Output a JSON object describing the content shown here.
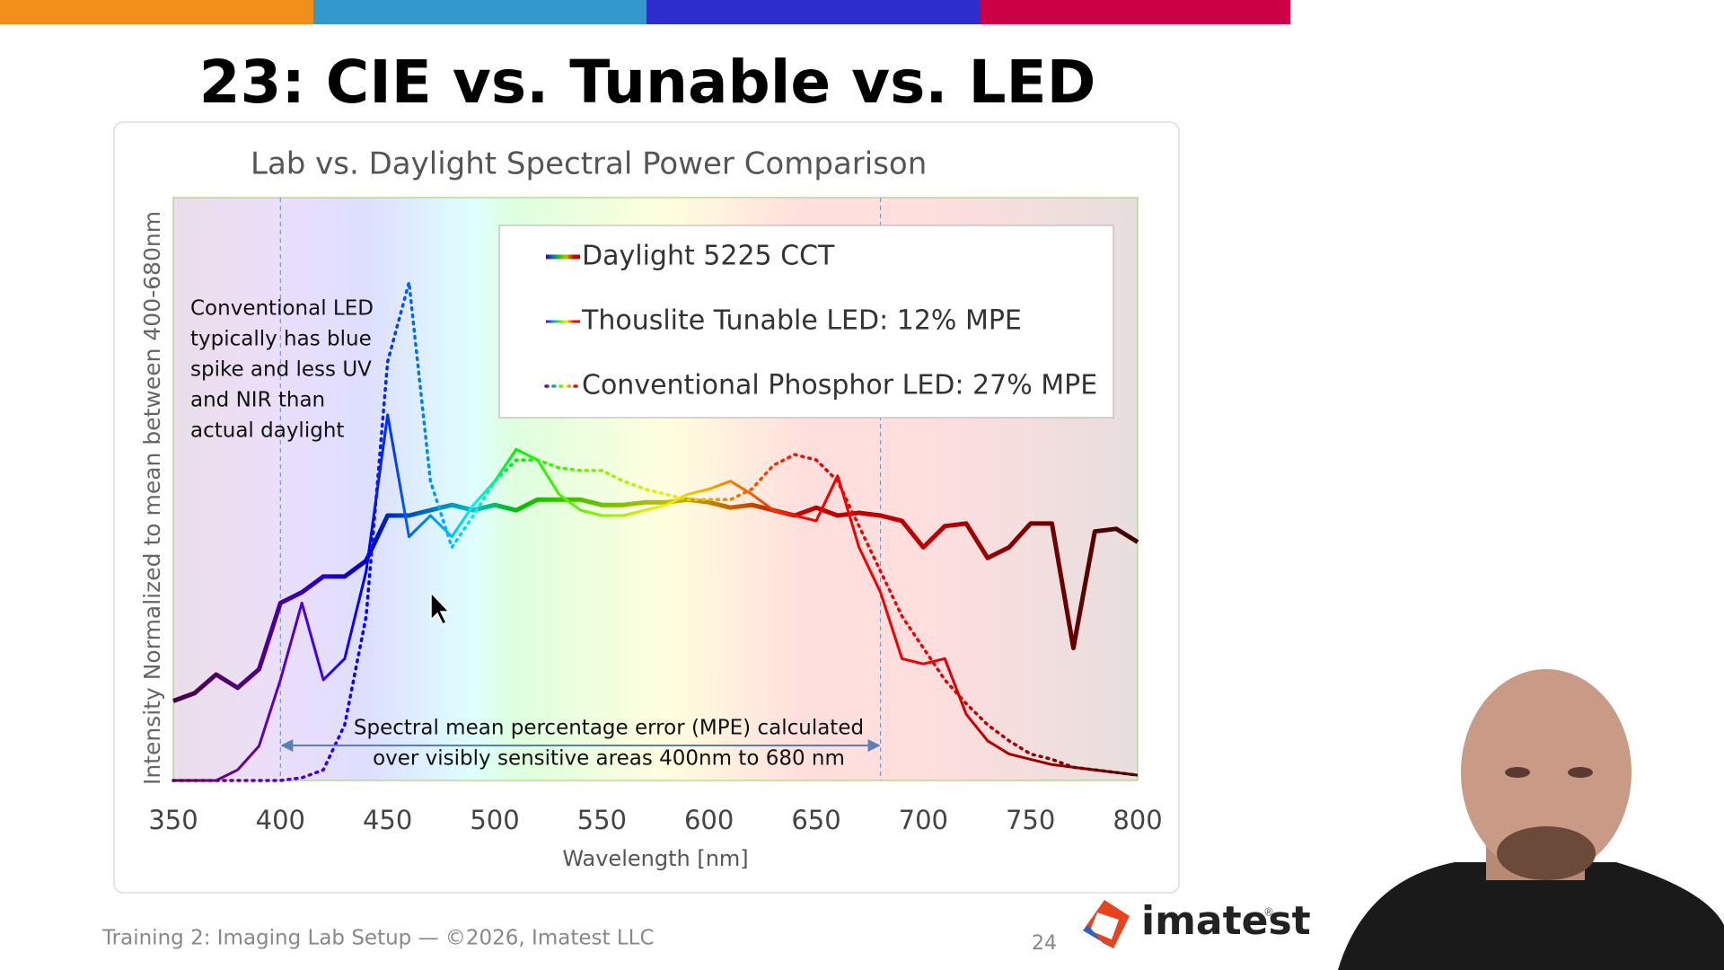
{
  "slide": {
    "title": "23: CIE vs. Tunable vs. LED",
    "footer": "Training 2: Imaging Lab Setup — ©2026, Imatest LLC",
    "page_number": "24",
    "logo": "imatest",
    "logo_mark": "®"
  },
  "chart_data": {
    "type": "line",
    "title": "Lab vs. Daylight Spectral Power Comparison",
    "x_label": "Wavelength [nm]",
    "y_label": "Intensity Normalized to mean between 400-680nm",
    "color_mode": "wavelength",
    "legend": "upper right",
    "x": [
      350,
      360,
      370,
      380,
      390,
      400,
      410,
      420,
      430,
      440,
      450,
      460,
      470,
      480,
      490,
      500,
      510,
      520,
      530,
      540,
      550,
      560,
      570,
      580,
      590,
      600,
      610,
      620,
      630,
      640,
      650,
      660,
      670,
      680,
      690,
      700,
      710,
      720,
      730,
      740,
      750,
      760,
      770,
      780,
      790,
      800
    ],
    "series": [
      {
        "name": "Daylight 5225 CCT",
        "line_style": "solid",
        "line_width": 5,
        "values": [
          0.3,
          0.33,
          0.4,
          0.35,
          0.42,
          0.67,
          0.71,
          0.77,
          0.77,
          0.83,
          1.0,
          1.0,
          1.02,
          1.04,
          1.02,
          1.04,
          1.02,
          1.06,
          1.06,
          1.06,
          1.04,
          1.04,
          1.05,
          1.05,
          1.06,
          1.05,
          1.03,
          1.04,
          1.02,
          1.0,
          1.03,
          1.0,
          1.01,
          1.0,
          0.98,
          0.88,
          0.96,
          0.97,
          0.84,
          0.88,
          0.97,
          0.97,
          0.5,
          0.94,
          0.95,
          0.9
        ]
      },
      {
        "name": "Thouslite Tunable LED: 12% MPE",
        "line_style": "solid",
        "line_width": 3,
        "values": [
          0,
          0,
          0,
          0.04,
          0.13,
          0.38,
          0.67,
          0.38,
          0.46,
          0.79,
          1.38,
          0.92,
          1.0,
          0.92,
          1.04,
          1.13,
          1.25,
          1.21,
          1.08,
          1.02,
          1.0,
          1.0,
          1.02,
          1.04,
          1.08,
          1.1,
          1.13,
          1.08,
          1.02,
          1.0,
          0.98,
          1.15,
          0.88,
          0.71,
          0.46,
          0.44,
          0.46,
          0.25,
          0.15,
          0.1,
          0.08,
          0.06,
          0.05,
          0.04,
          0.03,
          0.02
        ]
      },
      {
        "name": "Conventional Phosphor LED: 27% MPE",
        "line_style": "dotted",
        "line_width": 3.5,
        "values": [
          0,
          0,
          0,
          0,
          0,
          0,
          0.01,
          0.04,
          0.21,
          0.62,
          1.58,
          1.88,
          1.13,
          0.88,
          1.0,
          1.13,
          1.21,
          1.21,
          1.18,
          1.17,
          1.17,
          1.13,
          1.1,
          1.08,
          1.06,
          1.06,
          1.06,
          1.1,
          1.19,
          1.23,
          1.21,
          1.13,
          0.96,
          0.79,
          0.62,
          0.5,
          0.38,
          0.29,
          0.21,
          0.15,
          0.1,
          0.08,
          0.05,
          0.04,
          0.03,
          0.02
        ]
      }
    ],
    "xlim": [
      350,
      800
    ],
    "xticks": [
      350,
      400,
      450,
      500,
      550,
      600,
      650,
      700,
      750,
      800
    ],
    "ylim": [
      0,
      2.2
    ],
    "vlines": [
      400,
      680
    ],
    "annotations": [
      {
        "lines": [
          "Conventional LED",
          "typically has blue",
          "spike and less UV",
          "and NIR than",
          "actual daylight"
        ]
      },
      {
        "lines": [
          "Spectral mean percentage error (MPE) calculated",
          "over visibly sensitive areas 400nm to 680 nm"
        ],
        "from": 400,
        "to": 680
      }
    ]
  }
}
